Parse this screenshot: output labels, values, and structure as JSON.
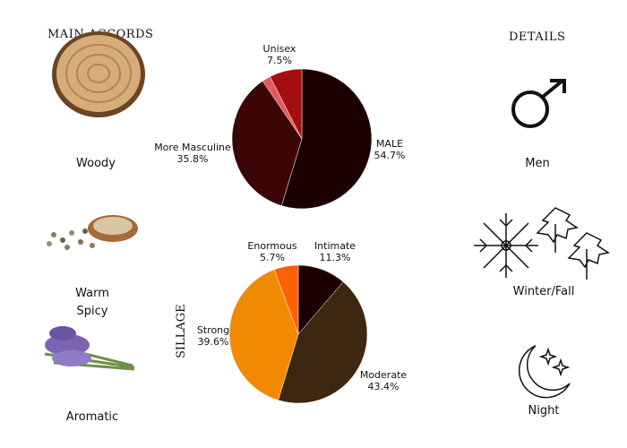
{
  "accords": {
    "title": "MAIN ACCORDS",
    "items": [
      {
        "label": "Woody",
        "icon": "wood-slice-image"
      },
      {
        "label": "Warm\nSpicy",
        "icon": "peppercorns-image"
      },
      {
        "label": "Aromatic",
        "icon": "lavender-image"
      }
    ]
  },
  "details": {
    "title": "DETAILS",
    "items": [
      {
        "label": "Men",
        "icon": "male-symbol-icon"
      },
      {
        "label": "Winter/Fall",
        "icon": "snowflake-leaves-icon"
      },
      {
        "label": "Night",
        "icon": "moon-stars-icon"
      }
    ]
  },
  "chart_data": [
    {
      "type": "pie",
      "title": "",
      "slices": [
        {
          "label": "MALE",
          "value": 54.7,
          "display": "54.7%",
          "color": "#1c0000"
        },
        {
          "label": "More Masculine",
          "value": 35.8,
          "display": "35.8%",
          "color": "#3d0606"
        },
        {
          "label": "",
          "value": 2.0,
          "display": "",
          "color": "#e45a5a"
        },
        {
          "label": "Unisex",
          "value": 7.5,
          "display": "7.5%",
          "color": "#a50e0e"
        }
      ]
    },
    {
      "type": "pie",
      "title": "SILLAGE",
      "slices": [
        {
          "label": "Intimate",
          "value": 11.3,
          "display": "11.3%",
          "color": "#1c0000"
        },
        {
          "label": "Moderate",
          "value": 43.4,
          "display": "43.4%",
          "color": "#3e2710"
        },
        {
          "label": "Strong",
          "value": 39.6,
          "display": "39.6%",
          "color": "#f28a00"
        },
        {
          "label": "Enormous",
          "value": 5.7,
          "display": "5.7%",
          "color": "#fe6006"
        }
      ]
    }
  ]
}
